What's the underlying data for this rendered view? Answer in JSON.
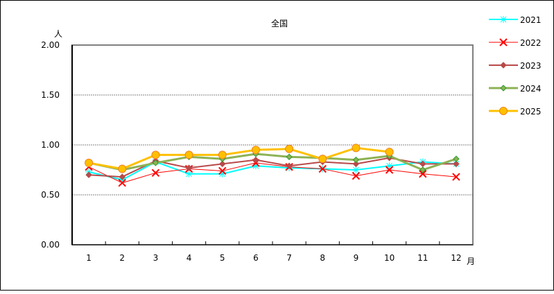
{
  "chart_data": {
    "type": "line",
    "title": "全国",
    "ylabel": "人",
    "xlabel": "月",
    "ylim": [
      0,
      2
    ],
    "yticks": [
      "0.00",
      "0.50",
      "1.00",
      "1.50",
      "2.00"
    ],
    "categories": [
      "1",
      "2",
      "3",
      "4",
      "5",
      "6",
      "7",
      "8",
      "9",
      "10",
      "11",
      "12"
    ],
    "grid": true,
    "legend_position": "right",
    "series": [
      {
        "name": "2021",
        "color": "#00FFFF",
        "marker": "asterisk",
        "width": 2,
        "values": [
          0.73,
          0.65,
          0.83,
          0.71,
          0.71,
          0.79,
          0.77,
          0.76,
          0.75,
          0.79,
          0.83,
          0.81
        ]
      },
      {
        "name": "2022",
        "color": "#FF0000",
        "marker": "x",
        "width": 1,
        "values": [
          0.78,
          0.62,
          0.72,
          0.76,
          0.74,
          0.82,
          0.78,
          0.76,
          0.69,
          0.75,
          0.71,
          0.68
        ]
      },
      {
        "name": "2023",
        "color": "#B84A4A",
        "marker": "diamond",
        "width": 2,
        "values": [
          0.7,
          0.68,
          0.84,
          0.77,
          0.81,
          0.85,
          0.79,
          0.83,
          0.81,
          0.87,
          0.81,
          0.81
        ]
      },
      {
        "name": "2024",
        "color": "#8DB255",
        "marker": "diamond",
        "width": 3,
        "values": [
          0.82,
          0.75,
          0.82,
          0.88,
          0.86,
          0.91,
          0.88,
          0.87,
          0.85,
          0.89,
          0.75,
          0.86
        ]
      },
      {
        "name": "2025",
        "color": "#FFC000",
        "marker": "circle",
        "width": 3,
        "values": [
          0.82,
          0.76,
          0.9,
          0.9,
          0.9,
          0.95,
          0.96,
          0.86,
          0.97,
          0.93
        ]
      }
    ]
  }
}
